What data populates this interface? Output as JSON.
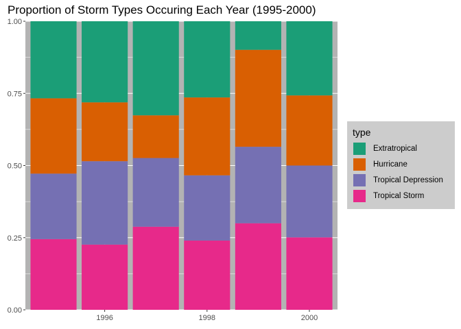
{
  "chart_data": {
    "type": "bar",
    "stacked": true,
    "title": "Proportion of Storm Types Occuring Each Year (1995-2000)",
    "xlabel": "",
    "ylabel": "",
    "x": [
      1995,
      1996,
      1997,
      1998,
      1999,
      2000
    ],
    "x_ticks": [
      1996,
      1998,
      2000
    ],
    "x_tick_labels": [
      "1996",
      "1998",
      "2000"
    ],
    "y_ticks": [
      0,
      0.25,
      0.5,
      0.75,
      1
    ],
    "y_tick_labels": [
      "0.00",
      "0.25",
      "0.50",
      "0.75",
      "1.00"
    ],
    "ylim": [
      0,
      1
    ],
    "xlim": [
      1994.45,
      2000.55
    ],
    "grid": true,
    "legend": {
      "title": "type",
      "position": "right",
      "entries": [
        "Extratropical",
        "Hurricane",
        "Tropical Depression",
        "Tropical Storm"
      ]
    },
    "series": [
      {
        "name": "Tropical Storm",
        "color": "#e7298a",
        "values": [
          0.245,
          0.226,
          0.288,
          0.24,
          0.3,
          0.251
        ]
      },
      {
        "name": "Tropical Depression",
        "color": "#7570b3",
        "values": [
          0.227,
          0.289,
          0.238,
          0.226,
          0.265,
          0.249
        ]
      },
      {
        "name": "Hurricane",
        "color": "#d95f02",
        "values": [
          0.261,
          0.204,
          0.148,
          0.27,
          0.336,
          0.243
        ]
      },
      {
        "name": "Extratropical",
        "color": "#1b9e77",
        "values": [
          0.267,
          0.281,
          0.326,
          0.264,
          0.099,
          0.257
        ]
      }
    ]
  }
}
